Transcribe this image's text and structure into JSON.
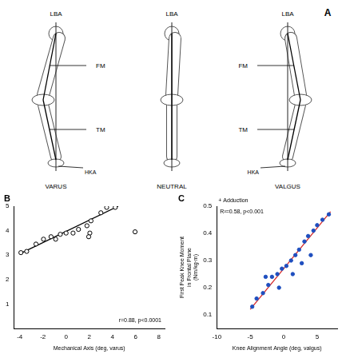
{
  "diagram": {
    "panel": "A",
    "legs": [
      {
        "top": "LBA",
        "femur": "FM",
        "tibia": "TM",
        "angle": "HKA",
        "label": "VARUS"
      },
      {
        "top": "LBA",
        "label": "NEUTRAL"
      },
      {
        "top": "LBA",
        "femur": "FM",
        "tibia": "TM",
        "angle": "HKA",
        "label": "VALGUS"
      }
    ]
  },
  "chart_data": [
    {
      "panel": "B",
      "type": "scatter",
      "x_label": "Mechanical Axis (deg, varus)",
      "x": [
        4.24,
        3.5,
        3.0,
        2.15,
        1.8,
        2.05,
        1.95,
        1.07,
        0.6,
        0.0,
        -0.5,
        -0.9,
        -1.3,
        -1.95,
        -2.6,
        -3.4,
        -3.9,
        5.95
      ],
      "y": [
        4.95,
        4.95,
        4.73,
        4.4,
        4.2,
        3.9,
        3.75,
        4.05,
        3.9,
        3.9,
        3.85,
        3.65,
        3.75,
        3.65,
        3.45,
        3.15,
        3.1,
        3.95
      ],
      "color": "#000000",
      "marker": "open_circle",
      "fit": {
        "x": [
          -4,
          4.5
        ],
        "y": [
          3.05,
          5.0
        ],
        "color": "#000000"
      },
      "annotation": "r=0.88, p<0.0001",
      "xlim": [
        -4.5,
        8.5
      ],
      "xticks": [
        -4,
        -2,
        0,
        2,
        4,
        6,
        8
      ],
      "ylim": [
        0,
        5
      ],
      "yticks": [
        1,
        2,
        3,
        4,
        5
      ],
      "grid": false
    },
    {
      "panel": "C",
      "type": "scatter",
      "x_label": "Knee Alignment Angle (deg, valgus)",
      "y_label": "First Peak Knee Moment in Frontal Plane (Nm/kg·m)",
      "y_note": "+ Adduction",
      "x": [
        -4.7,
        -4.05,
        -3.1,
        -2.3,
        -1.75,
        -0.95,
        -0.27,
        0.4,
        1.1,
        1.75,
        2.3,
        3.1,
        3.65,
        4.45,
        5.0,
        5.8,
        6.75,
        -0.7,
        1.35,
        2.7,
        4.05,
        -2.7
      ],
      "y": [
        0.13,
        0.16,
        0.18,
        0.21,
        0.24,
        0.25,
        0.27,
        0.28,
        0.3,
        0.32,
        0.34,
        0.37,
        0.39,
        0.41,
        0.43,
        0.45,
        0.47,
        0.2,
        0.25,
        0.29,
        0.32,
        0.24
      ],
      "color": "#1f4fbf",
      "marker": "circle",
      "fit": {
        "x": [
          -5,
          7
        ],
        "y": [
          0.12,
          0.48
        ],
        "color": "#d62728"
      },
      "annotation": "R²=0.58, p<0.001",
      "xlim": [
        -10,
        8
      ],
      "xticks": [
        -10,
        -5,
        0,
        5
      ],
      "ylim": [
        0.05,
        0.5
      ],
      "yticks": [
        0.1,
        0.2,
        0.3,
        0.4,
        0.5
      ],
      "grid": false
    }
  ]
}
